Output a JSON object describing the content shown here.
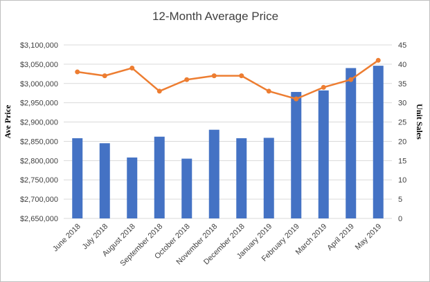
{
  "chart_data": {
    "type": "bar+line",
    "title": "12-Month Average Price",
    "categories": [
      "June 2018",
      "July 2018",
      "August 2018",
      "September 2018",
      "October 2018",
      "November 2018",
      "December 2018",
      "January 2019",
      "February 2019",
      "March 2019",
      "April 2019",
      "May 2019"
    ],
    "series": [
      {
        "name": "Ave Price",
        "type": "bar",
        "axis": "left",
        "color": "#4472C4",
        "values": [
          2858000,
          2845000,
          2808000,
          2862000,
          2805000,
          2880000,
          2858000,
          2859000,
          2978000,
          2982000,
          3040000,
          3046000
        ]
      },
      {
        "name": "Unit Sales",
        "type": "line",
        "axis": "right",
        "color": "#ED7D31",
        "values": [
          38,
          37,
          39,
          33,
          36,
          37,
          37,
          33,
          31,
          34,
          36,
          41
        ]
      }
    ],
    "ylabel": "Ave Price",
    "y2label": "Unit Sales",
    "ylim": [
      2650000,
      3100000
    ],
    "yticks": [
      "$2,650,000",
      "$2,700,000",
      "$2,750,000",
      "$2,800,000",
      "$2,850,000",
      "$2,900,000",
      "$2,950,000",
      "$3,000,000",
      "$3,050,000",
      "$3,100,000"
    ],
    "y2lim": [
      0,
      45
    ],
    "y2ticks": [
      "0",
      "5",
      "10",
      "15",
      "20",
      "25",
      "30",
      "35",
      "40",
      "45"
    ],
    "grid": true,
    "gridColor": "#d9d9d9"
  }
}
